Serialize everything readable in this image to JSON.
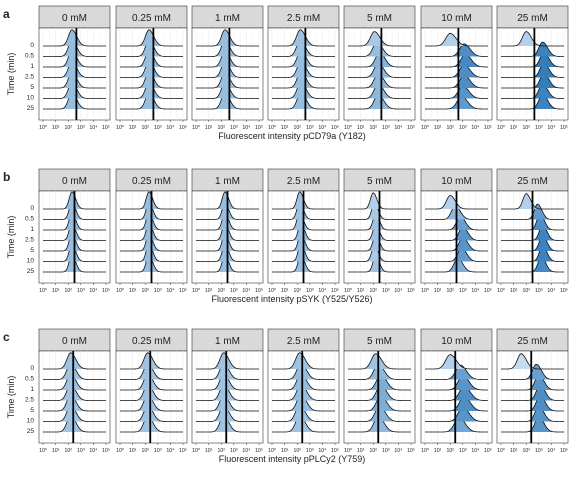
{
  "chart_data": {
    "type": "ridgeline",
    "concentrations": [
      "0 mM",
      "0.25 mM",
      "1 mM",
      "2.5 mM",
      "5 mM",
      "10 mM",
      "25 mM"
    ],
    "time_points": [
      "0",
      "0.5",
      "1",
      "2.5",
      "5",
      "10",
      "25"
    ],
    "y_axis_label": "Time (min)",
    "x_scale": "log10",
    "x_tick_labels": [
      "10⁰",
      "10¹",
      "10²",
      "10³",
      "10⁴",
      "10⁵"
    ],
    "x_tick_values": [
      0,
      1,
      2,
      3,
      4,
      5
    ],
    "fill_colors": {
      "light": "#c6dbef",
      "dark": "#2171b5"
    },
    "panels": [
      {
        "letter": "a",
        "xlabel": "Fluorescent intensity pCD79a (Y182)",
        "xlim": [
          0,
          5
        ],
        "threshold": 2.65,
        "series": [
          {
            "conc": "0 mM",
            "peaks": [
              2.3,
              2.3,
              2.3,
              2.3,
              2.3,
              2.3,
              2.3
            ],
            "width": 0.28,
            "height": 0.9
          },
          {
            "conc": "0.25 mM",
            "peaks": [
              2.3,
              2.3,
              2.3,
              2.3,
              2.3,
              2.3,
              2.3
            ],
            "width": 0.28,
            "height": 0.9
          },
          {
            "conc": "1 mM",
            "peaks": [
              2.3,
              2.3,
              2.3,
              2.3,
              2.3,
              2.3,
              2.3
            ],
            "width": 0.28,
            "height": 0.9
          },
          {
            "conc": "2.5 mM",
            "peaks": [
              2.25,
              2.25,
              2.3,
              2.3,
              2.3,
              2.3,
              2.3
            ],
            "width": 0.3,
            "height": 0.9
          },
          {
            "conc": "5 mM",
            "peaks": [
              2.1,
              2.3,
              2.5,
              2.4,
              2.4,
              2.4,
              2.4
            ],
            "width": 0.32,
            "height": 0.8
          },
          {
            "conc": "10 mM",
            "peaks": [
              2.0,
              3.1,
              3.2,
              3.1,
              3.1,
              3.0,
              2.9
            ],
            "width": 0.35,
            "height": 0.7
          },
          {
            "conc": "25 mM",
            "peaks": [
              2.0,
              3.3,
              3.4,
              3.4,
              3.4,
              3.3,
              3.3
            ],
            "width": 0.3,
            "height": 0.8
          }
        ]
      },
      {
        "letter": "b",
        "xlabel": "Fluorescent intensity pSYK (Y525/Y526)",
        "xlim": [
          0,
          5
        ],
        "threshold": 2.5,
        "series": [
          {
            "conc": "0 mM",
            "peaks": [
              2.3,
              2.3,
              2.3,
              2.3,
              2.3,
              2.3,
              2.3
            ],
            "width": 0.22,
            "height": 0.95
          },
          {
            "conc": "0.25 mM",
            "peaks": [
              2.3,
              2.3,
              2.3,
              2.3,
              2.3,
              2.3,
              2.3
            ],
            "width": 0.22,
            "height": 0.95
          },
          {
            "conc": "1 mM",
            "peaks": [
              2.3,
              2.3,
              2.3,
              2.3,
              2.3,
              2.3,
              2.3
            ],
            "width": 0.22,
            "height": 0.95
          },
          {
            "conc": "2.5 mM",
            "peaks": [
              2.2,
              2.2,
              2.2,
              2.3,
              2.3,
              2.3,
              2.3
            ],
            "width": 0.22,
            "height": 0.95
          },
          {
            "conc": "5 mM",
            "peaks": [
              2.0,
              2.1,
              2.2,
              2.2,
              2.2,
              2.1,
              2.2
            ],
            "width": 0.22,
            "height": 0.9
          },
          {
            "conc": "10 mM",
            "peaks": [
              2.0,
              2.4,
              2.8,
              3.0,
              3.0,
              2.9,
              2.6
            ],
            "width": 0.3,
            "height": 0.75
          },
          {
            "conc": "25 mM",
            "peaks": [
              2.0,
              2.9,
              3.1,
              3.3,
              3.3,
              3.3,
              3.2
            ],
            "width": 0.26,
            "height": 0.85
          }
        ]
      },
      {
        "letter": "c",
        "xlabel": "Fluorescent intensity pPLCy2 (Y759)",
        "xlim": [
          0,
          5
        ],
        "threshold": 2.4,
        "series": [
          {
            "conc": "0 mM",
            "peaks": [
              2.2,
              2.2,
              2.2,
              2.2,
              2.2,
              2.2,
              2.2
            ],
            "width": 0.3,
            "height": 0.9
          },
          {
            "conc": "0.25 mM",
            "peaks": [
              2.2,
              2.2,
              2.2,
              2.2,
              2.2,
              2.2,
              2.2
            ],
            "width": 0.3,
            "height": 0.9
          },
          {
            "conc": "1 mM",
            "peaks": [
              2.2,
              2.2,
              2.2,
              2.2,
              2.2,
              2.2,
              2.2
            ],
            "width": 0.3,
            "height": 0.9
          },
          {
            "conc": "2.5 mM",
            "peaks": [
              2.2,
              2.3,
              2.3,
              2.3,
              2.3,
              2.2,
              2.2
            ],
            "width": 0.32,
            "height": 0.9
          },
          {
            "conc": "5 mM",
            "peaks": [
              2.2,
              2.4,
              2.6,
              2.6,
              2.6,
              2.5,
              2.4
            ],
            "width": 0.34,
            "height": 0.85
          },
          {
            "conc": "10 mM",
            "peaks": [
              2.0,
              2.8,
              3.0,
              3.1,
              3.1,
              3.0,
              2.7
            ],
            "width": 0.36,
            "height": 0.8
          },
          {
            "conc": "25 mM",
            "peaks": [
              1.6,
              2.8,
              3.0,
              3.1,
              3.1,
              3.0,
              3.0
            ],
            "width": 0.3,
            "height": 0.85
          }
        ]
      }
    ]
  }
}
